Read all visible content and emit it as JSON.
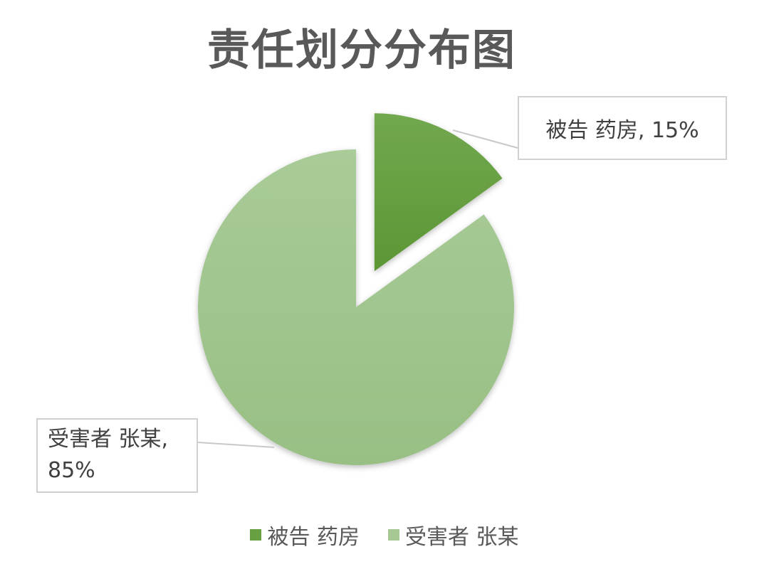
{
  "chart_data": {
    "type": "pie",
    "title": "责任划分分布图",
    "categories": [
      "被告 药房",
      "受害者 张某"
    ],
    "values": [
      15,
      85
    ],
    "unit": "%",
    "data_labels": [
      "被告 药房, 15%",
      "受害者 张某, 85%"
    ],
    "colors": [
      "#66a040",
      "#a6c994"
    ],
    "exploded": [
      true,
      false
    ],
    "legend_position": "bottom"
  }
}
